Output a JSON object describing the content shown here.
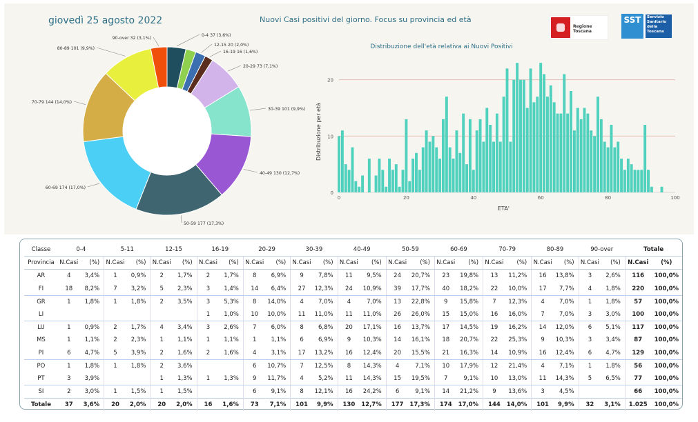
{
  "header": {
    "date": "giovedì 25 agosto 2022",
    "title": "Nuovi Casi positivi del giorno. Focus su provincia ed età",
    "logo1_text": "Regione Toscana",
    "logo2_abbrev": "SST",
    "logo2_text": "Servizio Sanitario della Toscana"
  },
  "chart_data": [
    {
      "type": "pie",
      "style": "donut",
      "labels": [
        "0-4 37 (3,6%)",
        "12-15 20 (2,0%)",
        "16-19 16 (1,6%)",
        "20-29 73 (7,1%)",
        "30-39 101 (9,9%)",
        "40-49 130 (12,7%)",
        "50-59 177 (17,3%)",
        "60-69 174 (17,0%)",
        "70-79 144 (14,0%)",
        "80-89 101 (9,9%)",
        "90-over 32 (3,1%)"
      ],
      "slices": [
        {
          "name": "0-4",
          "value": 37,
          "color": "#1f4e5f"
        },
        {
          "name": "5-11",
          "value": 20,
          "color": "#8fd14f"
        },
        {
          "name": "12-15",
          "value": 20,
          "color": "#3b6fb0"
        },
        {
          "name": "16-19",
          "value": 16,
          "color": "#5a2d1f"
        },
        {
          "name": "20-29",
          "value": 73,
          "color": "#d3b4ea"
        },
        {
          "name": "30-39",
          "value": 101,
          "color": "#86e3cc"
        },
        {
          "name": "40-49",
          "value": 130,
          "color": "#9a57d4"
        },
        {
          "name": "50-59",
          "value": 177,
          "color": "#3f6670"
        },
        {
          "name": "60-69",
          "value": 174,
          "color": "#4ccff5"
        },
        {
          "name": "70-79",
          "value": 144,
          "color": "#d4ad46"
        },
        {
          "name": "80-89",
          "value": 101,
          "color": "#e8ef3c"
        },
        {
          "name": "90-over",
          "value": 32,
          "color": "#f04e0b"
        }
      ]
    },
    {
      "type": "bar",
      "title": "Distribuzione dell'età relativa ai Nuovi Positivi",
      "xlabel": "ETA'",
      "ylabel": "Distribuzione per età",
      "xlim": [
        0,
        100
      ],
      "ylim": [
        0,
        24
      ],
      "xticks": [
        0,
        20,
        40,
        60,
        80,
        100
      ],
      "yticks": [
        0,
        10,
        20
      ],
      "color": "#4fd1be",
      "x": [
        0,
        1,
        2,
        3,
        4,
        5,
        6,
        7,
        8,
        9,
        10,
        11,
        12,
        13,
        14,
        15,
        16,
        17,
        18,
        19,
        20,
        21,
        22,
        23,
        24,
        25,
        26,
        27,
        28,
        29,
        30,
        31,
        32,
        33,
        34,
        35,
        36,
        37,
        38,
        39,
        40,
        41,
        42,
        43,
        44,
        45,
        46,
        47,
        48,
        49,
        50,
        51,
        52,
        53,
        54,
        55,
        56,
        57,
        58,
        59,
        60,
        61,
        62,
        63,
        64,
        65,
        66,
        67,
        68,
        69,
        70,
        71,
        72,
        73,
        74,
        75,
        76,
        77,
        78,
        79,
        80,
        81,
        82,
        83,
        84,
        85,
        86,
        87,
        88,
        89,
        90,
        91,
        92,
        93,
        94,
        95,
        96,
        97,
        98,
        99
      ],
      "values": [
        10,
        11,
        5,
        4,
        8,
        2,
        1,
        3,
        0,
        6,
        0,
        3,
        6,
        4,
        1,
        6,
        4,
        5,
        1,
        4,
        13,
        2,
        6,
        7,
        4,
        8,
        11,
        9,
        10,
        8,
        6,
        13,
        17,
        8,
        6,
        11,
        7,
        14,
        5,
        13,
        4,
        11,
        13,
        9,
        15,
        12,
        9,
        14,
        9,
        17,
        22,
        9,
        20,
        23,
        20,
        20,
        15,
        22,
        16,
        17,
        23,
        21,
        17,
        19,
        16,
        14,
        14,
        21,
        14,
        18,
        11,
        15,
        13,
        15,
        14,
        11,
        10,
        17,
        13,
        9,
        8,
        12,
        8,
        9,
        6,
        4,
        6,
        5,
        4,
        4,
        4,
        12,
        4,
        1,
        0,
        0,
        1,
        0,
        0,
        0
      ]
    }
  ],
  "table": {
    "class_label": "Classe",
    "provincia_label": "Provincia",
    "ncasi_label": "N.Casi",
    "pct_label": "(%)",
    "total_label": "Totale",
    "classes": [
      "0-4",
      "5-11",
      "12-15",
      "16-19",
      "20-29",
      "30-39",
      "40-49",
      "50-59",
      "60-69",
      "70-79",
      "80-89",
      "90-over"
    ],
    "rows": [
      {
        "prov": "AR",
        "cells": [
          [
            "4",
            "3,4%"
          ],
          [
            "1",
            "0,9%"
          ],
          [
            "2",
            "1,7%"
          ],
          [
            "2",
            "1,7%"
          ],
          [
            "8",
            "6,9%"
          ],
          [
            "9",
            "7,8%"
          ],
          [
            "11",
            "9,5%"
          ],
          [
            "24",
            "20,7%"
          ],
          [
            "23",
            "19,8%"
          ],
          [
            "13",
            "11,2%"
          ],
          [
            "16",
            "13,8%"
          ],
          [
            "3",
            "2,6%"
          ]
        ],
        "tot": "116",
        "tot_pct": "100,0%"
      },
      {
        "prov": "FI",
        "cells": [
          [
            "18",
            "8,2%"
          ],
          [
            "7",
            "3,2%"
          ],
          [
            "5",
            "2,3%"
          ],
          [
            "3",
            "1,4%"
          ],
          [
            "14",
            "6,4%"
          ],
          [
            "27",
            "12,3%"
          ],
          [
            "24",
            "10,9%"
          ],
          [
            "39",
            "17,7%"
          ],
          [
            "40",
            "18,2%"
          ],
          [
            "22",
            "10,0%"
          ],
          [
            "17",
            "7,7%"
          ],
          [
            "4",
            "1,8%"
          ]
        ],
        "tot": "220",
        "tot_pct": "100,0%"
      },
      {
        "prov": "GR",
        "cells": [
          [
            "1",
            "1,8%"
          ],
          [
            "1",
            "1,8%"
          ],
          [
            "2",
            "3,5%"
          ],
          [
            "3",
            "5,3%"
          ],
          [
            "8",
            "14,0%"
          ],
          [
            "4",
            "7,0%"
          ],
          [
            "4",
            "7,0%"
          ],
          [
            "13",
            "22,8%"
          ],
          [
            "9",
            "15,8%"
          ],
          [
            "7",
            "12,3%"
          ],
          [
            "4",
            "7,0%"
          ],
          [
            "1",
            "1,8%"
          ]
        ],
        "tot": "57",
        "tot_pct": "100,0%"
      },
      {
        "prov": "LI",
        "cells": [
          [
            "",
            ""
          ],
          [
            "",
            ""
          ],
          [
            "",
            ""
          ],
          [
            "1",
            "1,0%"
          ],
          [
            "10",
            "10,0%"
          ],
          [
            "11",
            "11,0%"
          ],
          [
            "11",
            "11,0%"
          ],
          [
            "26",
            "26,0%"
          ],
          [
            "15",
            "15,0%"
          ],
          [
            "16",
            "16,0%"
          ],
          [
            "7",
            "7,0%"
          ],
          [
            "3",
            "3,0%"
          ]
        ],
        "tot": "100",
        "tot_pct": "100,0%"
      },
      {
        "prov": "LU",
        "cells": [
          [
            "1",
            "0,9%"
          ],
          [
            "2",
            "1,7%"
          ],
          [
            "4",
            "3,4%"
          ],
          [
            "3",
            "2,6%"
          ],
          [
            "7",
            "6,0%"
          ],
          [
            "8",
            "6,8%"
          ],
          [
            "20",
            "17,1%"
          ],
          [
            "16",
            "13,7%"
          ],
          [
            "17",
            "14,5%"
          ],
          [
            "19",
            "16,2%"
          ],
          [
            "14",
            "12,0%"
          ],
          [
            "6",
            "5,1%"
          ]
        ],
        "tot": "117",
        "tot_pct": "100,0%"
      },
      {
        "prov": "MS",
        "cells": [
          [
            "1",
            "1,1%"
          ],
          [
            "2",
            "2,3%"
          ],
          [
            "1",
            "1,1%"
          ],
          [
            "1",
            "1,1%"
          ],
          [
            "1",
            "1,1%"
          ],
          [
            "6",
            "6,9%"
          ],
          [
            "9",
            "10,3%"
          ],
          [
            "14",
            "16,1%"
          ],
          [
            "18",
            "20,7%"
          ],
          [
            "22",
            "25,3%"
          ],
          [
            "9",
            "10,3%"
          ],
          [
            "3",
            "3,4%"
          ]
        ],
        "tot": "87",
        "tot_pct": "100,0%"
      },
      {
        "prov": "PI",
        "cells": [
          [
            "6",
            "4,7%"
          ],
          [
            "5",
            "3,9%"
          ],
          [
            "2",
            "1,6%"
          ],
          [
            "2",
            "1,6%"
          ],
          [
            "4",
            "3,1%"
          ],
          [
            "17",
            "13,2%"
          ],
          [
            "16",
            "12,4%"
          ],
          [
            "20",
            "15,5%"
          ],
          [
            "21",
            "16,3%"
          ],
          [
            "14",
            "10,9%"
          ],
          [
            "16",
            "12,4%"
          ],
          [
            "6",
            "4,7%"
          ]
        ],
        "tot": "129",
        "tot_pct": "100,0%"
      },
      {
        "prov": "PO",
        "cells": [
          [
            "1",
            "1,8%"
          ],
          [
            "1",
            "1,8%"
          ],
          [
            "2",
            "3,6%"
          ],
          [
            "",
            ""
          ],
          [
            "6",
            "10,7%"
          ],
          [
            "7",
            "12,5%"
          ],
          [
            "8",
            "14,3%"
          ],
          [
            "4",
            "7,1%"
          ],
          [
            "10",
            "17,9%"
          ],
          [
            "12",
            "21,4%"
          ],
          [
            "4",
            "7,1%"
          ],
          [
            "1",
            "1,8%"
          ]
        ],
        "tot": "56",
        "tot_pct": "100,0%"
      },
      {
        "prov": "PT",
        "cells": [
          [
            "3",
            "3,9%"
          ],
          [
            "",
            ""
          ],
          [
            "1",
            "1,3%"
          ],
          [
            "1",
            "1,3%"
          ],
          [
            "9",
            "11,7%"
          ],
          [
            "4",
            "5,2%"
          ],
          [
            "11",
            "14,3%"
          ],
          [
            "15",
            "19,5%"
          ],
          [
            "7",
            "9,1%"
          ],
          [
            "10",
            "13,0%"
          ],
          [
            "11",
            "14,3%"
          ],
          [
            "5",
            "6,5%"
          ]
        ],
        "tot": "77",
        "tot_pct": "100,0%"
      },
      {
        "prov": "SI",
        "cells": [
          [
            "2",
            "3,0%"
          ],
          [
            "1",
            "1,5%"
          ],
          [
            "1",
            "1,5%"
          ],
          [
            "",
            ""
          ],
          [
            "6",
            "9,1%"
          ],
          [
            "8",
            "12,1%"
          ],
          [
            "16",
            "24,2%"
          ],
          [
            "6",
            "9,1%"
          ],
          [
            "14",
            "21,2%"
          ],
          [
            "9",
            "13,6%"
          ],
          [
            "3",
            "4,5%"
          ],
          [
            "",
            ""
          ]
        ],
        "tot": "66",
        "tot_pct": "100,0%"
      }
    ],
    "totals": {
      "prov": "Totale",
      "cells": [
        [
          "37",
          "3,6%"
        ],
        [
          "20",
          "2,0%"
        ],
        [
          "20",
          "2,0%"
        ],
        [
          "16",
          "1,6%"
        ],
        [
          "73",
          "7,1%"
        ],
        [
          "101",
          "9,9%"
        ],
        [
          "130",
          "12,7%"
        ],
        [
          "177",
          "17,3%"
        ],
        [
          "174",
          "17,0%"
        ],
        [
          "144",
          "14,0%"
        ],
        [
          "101",
          "9,9%"
        ],
        [
          "32",
          "3,1%"
        ]
      ],
      "tot": "1.025",
      "tot_pct": "100,0%"
    }
  }
}
